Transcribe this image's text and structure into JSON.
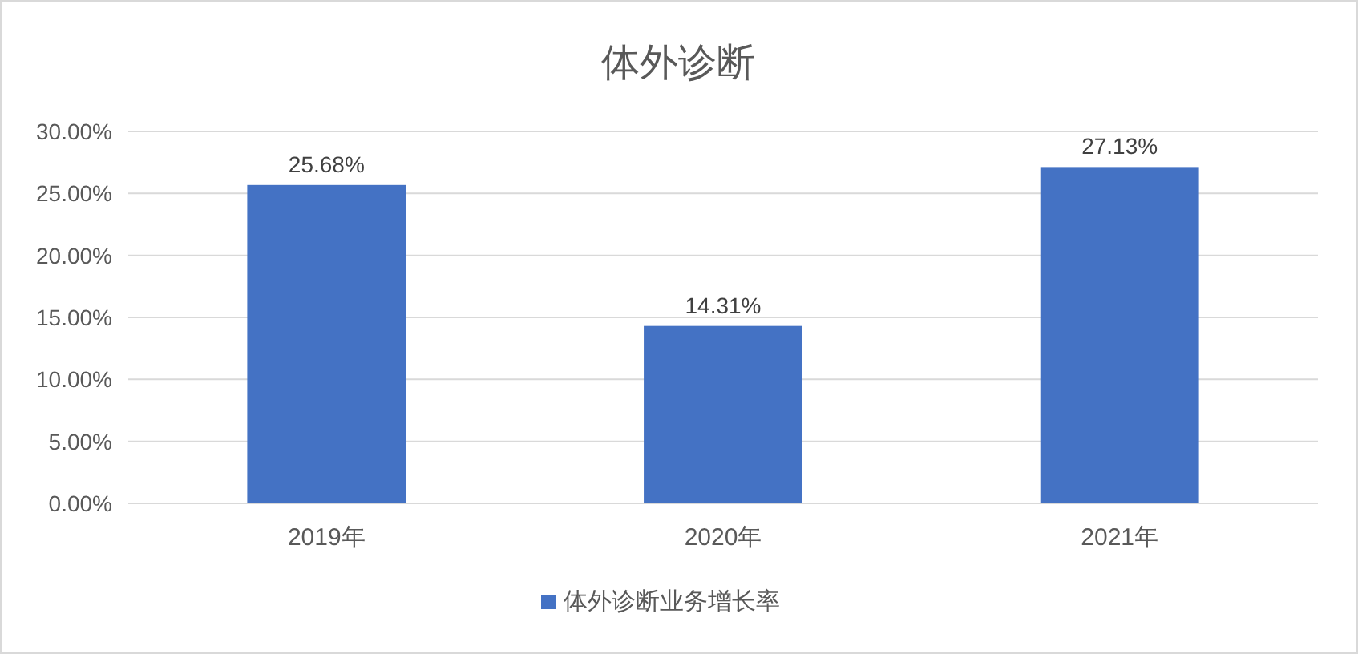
{
  "chart_data": {
    "type": "bar",
    "title": "体外诊断",
    "categories": [
      "2019年",
      "2020年",
      "2021年"
    ],
    "series": [
      {
        "name": "体外诊断业务增长率",
        "color": "#4472c4",
        "values": [
          25.68,
          14.31,
          27.13
        ],
        "value_labels": [
          "25.68%",
          "14.31%",
          "27.13%"
        ]
      }
    ],
    "ylim": [
      0,
      30
    ],
    "yticks": [
      {
        "value": 0,
        "label": "0.00%"
      },
      {
        "value": 5,
        "label": "5.00%"
      },
      {
        "value": 10,
        "label": "10.00%"
      },
      {
        "value": 15,
        "label": "15.00%"
      },
      {
        "value": 20,
        "label": "20.00%"
      },
      {
        "value": 25,
        "label": "25.00%"
      },
      {
        "value": 30,
        "label": "30.00%"
      }
    ],
    "grid": "y",
    "legend": "bottom"
  }
}
